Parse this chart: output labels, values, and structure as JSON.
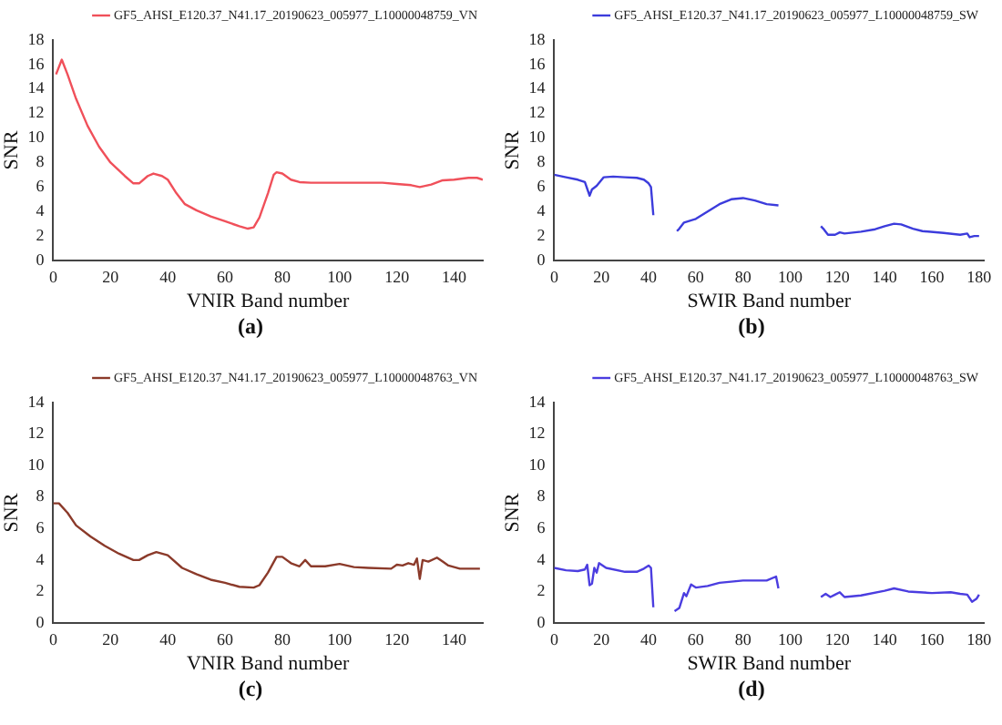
{
  "chart_data": [
    {
      "type": "line",
      "xlabel": "VNIR Band number",
      "ylabel": "SNR",
      "xlim": [
        0,
        150
      ],
      "xticks": [
        0,
        20,
        40,
        60,
        80,
        100,
        120,
        140
      ],
      "ylim": [
        0,
        18
      ],
      "yticks": [
        0,
        2,
        4,
        6,
        8,
        10,
        12,
        14,
        16,
        18
      ],
      "grid": false,
      "legend": "top right",
      "annotations": [
        "(a)"
      ],
      "series": [
        {
          "name": "GF5_AHSI_E120.37_N41.17_20190623_005977_L10000048759_VN",
          "color": "#f0505a",
          "x": [
            1,
            3,
            5,
            8,
            12,
            16,
            20,
            25,
            28,
            30,
            33,
            35,
            38,
            40,
            43,
            46,
            50,
            55,
            60,
            65,
            68,
            70,
            72,
            75,
            77,
            78,
            80,
            83,
            86,
            90,
            100,
            110,
            115,
            120,
            125,
            128,
            132,
            136,
            140,
            145,
            148,
            150
          ],
          "values": [
            15.2,
            16.4,
            15.2,
            13.2,
            11,
            9.3,
            8,
            6.9,
            6.3,
            6.3,
            6.9,
            7.1,
            6.9,
            6.6,
            5.5,
            4.6,
            4.1,
            3.6,
            3.2,
            2.8,
            2.6,
            2.7,
            3.5,
            5.5,
            7.0,
            7.2,
            7.1,
            6.6,
            6.4,
            6.35,
            6.35,
            6.35,
            6.35,
            6.25,
            6.15,
            6.0,
            6.2,
            6.55,
            6.6,
            6.75,
            6.75,
            6.6
          ]
        }
      ]
    },
    {
      "type": "line",
      "xlabel": "SWIR Band number",
      "ylabel": "SNR",
      "xlim": [
        0,
        182
      ],
      "xticks": [
        0,
        20,
        40,
        60,
        80,
        100,
        120,
        140,
        160,
        180
      ],
      "ylim": [
        0,
        18
      ],
      "yticks": [
        0,
        2,
        4,
        6,
        8,
        10,
        12,
        14,
        16,
        18
      ],
      "grid": false,
      "legend": "top right",
      "annotations": [
        "(b)"
      ],
      "series": [
        {
          "name": "GF5_AHSI_E120.37_N41.17_20190623_005977_L10000048759_SW",
          "color": "#3c3cdc",
          "x": [
            0,
            5,
            10,
            13,
            15,
            16,
            18,
            21,
            25,
            30,
            35,
            38,
            40,
            41,
            42,
            47,
            52,
            53,
            55,
            60,
            65,
            70,
            75,
            80,
            85,
            90,
            95,
            104,
            113,
            114,
            116,
            119,
            121,
            123,
            130,
            136,
            140,
            144,
            147,
            152,
            156,
            165,
            172,
            175,
            176,
            178,
            180
          ],
          "values": [
            7.0,
            6.8,
            6.6,
            6.4,
            5.3,
            5.8,
            6.1,
            6.8,
            6.85,
            6.8,
            6.75,
            6.6,
            6.3,
            6.0,
            3.7,
            null,
            2.4,
            2.6,
            3.1,
            3.4,
            4.0,
            4.6,
            5.0,
            5.1,
            4.9,
            4.6,
            4.5,
            null,
            2.8,
            2.6,
            2.1,
            2.1,
            2.3,
            2.2,
            2.35,
            2.55,
            2.8,
            3.0,
            2.95,
            2.6,
            2.4,
            2.25,
            2.1,
            2.2,
            1.9,
            2.0,
            2.0
          ]
        }
      ]
    },
    {
      "type": "line",
      "xlabel": "VNIR Band number",
      "ylabel": "SNR",
      "xlim": [
        0,
        150
      ],
      "xticks": [
        0,
        20,
        40,
        60,
        80,
        100,
        120,
        140
      ],
      "ylim": [
        0,
        14
      ],
      "yticks": [
        0,
        2,
        4,
        6,
        8,
        10,
        12,
        14
      ],
      "grid": false,
      "legend": "top right",
      "annotations": [
        "(c)"
      ],
      "series": [
        {
          "name": "GF5_AHSI_E120.37_N41.17_20190623_005977_L10000048763_VN",
          "color": "#8b3a2a",
          "x": [
            0,
            2,
            5,
            8,
            13,
            18,
            23,
            28,
            30,
            33,
            36,
            40,
            45,
            50,
            55,
            60,
            65,
            70,
            72,
            75,
            78,
            80,
            83,
            86,
            88,
            90,
            95,
            100,
            105,
            110,
            118,
            120,
            122,
            124,
            126,
            127,
            128,
            129,
            131,
            134,
            136,
            138,
            142,
            149
          ],
          "values": [
            7.6,
            7.6,
            7.0,
            6.2,
            5.5,
            4.9,
            4.4,
            4.0,
            4.0,
            4.3,
            4.5,
            4.3,
            3.5,
            3.1,
            2.75,
            2.55,
            2.3,
            2.25,
            2.4,
            3.2,
            4.2,
            4.2,
            3.8,
            3.6,
            4.0,
            3.6,
            3.6,
            3.75,
            3.55,
            3.5,
            3.45,
            3.7,
            3.65,
            3.8,
            3.7,
            4.1,
            2.8,
            4.0,
            3.9,
            4.15,
            3.9,
            3.65,
            3.45,
            3.45
          ]
        }
      ]
    },
    {
      "type": "line",
      "xlabel": "SWIR Band number",
      "ylabel": "SNR",
      "xlim": [
        0,
        182
      ],
      "xticks": [
        0,
        20,
        40,
        60,
        80,
        100,
        120,
        140,
        160,
        180
      ],
      "ylim": [
        0,
        14
      ],
      "yticks": [
        0,
        2,
        4,
        6,
        8,
        10,
        12,
        14
      ],
      "grid": false,
      "legend": "top right",
      "annotations": [
        "(d)"
      ],
      "series": [
        {
          "name": "GF5_AHSI_E120.37_N41.17_20190623_005977_L10000048763_SW",
          "color": "#4b3de0",
          "x": [
            0,
            5,
            10,
            13,
            14,
            15,
            16,
            17,
            18,
            19,
            20,
            22,
            30,
            35,
            38,
            40,
            41,
            42,
            47,
            51,
            53,
            55,
            56,
            58,
            60,
            65,
            70,
            80,
            90,
            94,
            95,
            104,
            113,
            115,
            117,
            119,
            121,
            123,
            130,
            140,
            144,
            150,
            160,
            168,
            172,
            175,
            177,
            179,
            180
          ],
          "values": [
            3.5,
            3.35,
            3.3,
            3.4,
            3.7,
            2.4,
            2.5,
            3.5,
            3.2,
            3.8,
            3.7,
            3.5,
            3.25,
            3.25,
            3.45,
            3.65,
            3.5,
            1.0,
            null,
            0.75,
            0.95,
            1.9,
            1.7,
            2.45,
            2.25,
            2.35,
            2.55,
            2.7,
            2.7,
            2.95,
            2.2,
            null,
            1.65,
            1.85,
            1.65,
            1.8,
            1.95,
            1.65,
            1.75,
            2.05,
            2.2,
            2.0,
            1.9,
            1.95,
            1.85,
            1.8,
            1.35,
            1.55,
            1.8
          ]
        }
      ]
    }
  ]
}
